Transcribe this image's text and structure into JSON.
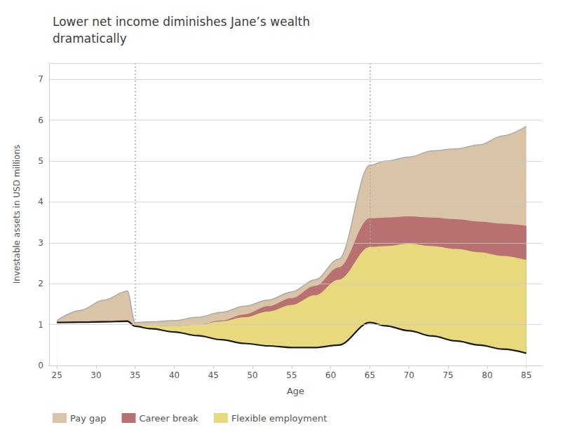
{
  "chart_data": {
    "type": "area",
    "title": "Lower net income diminishes Jane’s wealth\ndramatically",
    "xlabel": "Age",
    "ylabel": "Investable assets in USD millions",
    "x": [
      25,
      28,
      31,
      34,
      35,
      37,
      40,
      43,
      46,
      49,
      52,
      55,
      58,
      61,
      65,
      67,
      70,
      73,
      76,
      79,
      82,
      85
    ],
    "series": [
      {
        "type": "line",
        "color": "#aaaaaa",
        "values": [
          1.1,
          1.35,
          1.6,
          1.82,
          1.05,
          1.07,
          1.1,
          1.18,
          1.3,
          1.45,
          1.6,
          1.8,
          2.1,
          2.6,
          4.9,
          5.0,
          5.1,
          5.25,
          5.3,
          5.4,
          5.62,
          5.85
        ]
      },
      {
        "name": "Pay gap",
        "type": "area",
        "color": "#d9c4a8",
        "values": [
          1.1,
          1.35,
          1.6,
          1.82,
          1.05,
          1.07,
          1.1,
          1.18,
          1.3,
          1.45,
          1.6,
          1.8,
          2.1,
          2.6,
          4.9,
          5.0,
          5.1,
          5.25,
          5.3,
          5.4,
          5.62,
          5.85
        ]
      },
      {
        "name": "Career break",
        "type": "area",
        "color": "#b87070",
        "values": [
          1.05,
          1.07,
          1.09,
          1.11,
          1.0,
          0.98,
          0.96,
          1.0,
          1.1,
          1.25,
          1.45,
          1.65,
          1.95,
          2.4,
          3.6,
          3.62,
          3.65,
          3.62,
          3.58,
          3.52,
          3.47,
          3.42
        ]
      },
      {
        "name": "Flexible employment",
        "type": "area",
        "color": "#e8d87e",
        "values": [
          1.05,
          1.06,
          1.07,
          1.08,
          1.0,
          0.98,
          0.96,
          1.0,
          1.08,
          1.18,
          1.32,
          1.48,
          1.72,
          2.1,
          2.9,
          2.92,
          2.98,
          2.92,
          2.85,
          2.77,
          2.68,
          2.58
        ]
      },
      {
        "type": "line",
        "color": "#1a1a1a",
        "values": [
          1.05,
          1.06,
          1.07,
          1.08,
          0.96,
          0.9,
          0.82,
          0.73,
          0.63,
          0.54,
          0.48,
          0.44,
          0.44,
          0.5,
          1.05,
          0.97,
          0.85,
          0.72,
          0.6,
          0.5,
          0.4,
          0.3
        ]
      }
    ],
    "xlim": [
      24,
      87
    ],
    "ylim": [
      0,
      7.4
    ],
    "xticks": [
      25,
      30,
      35,
      40,
      45,
      50,
      55,
      60,
      65,
      70,
      75,
      80,
      85
    ],
    "yticks": [
      0,
      1,
      2,
      3,
      4,
      5,
      6,
      7
    ],
    "grid": true,
    "legend": "lower left",
    "vlines": {
      "x": [
        35,
        65
      ],
      "color": "#aaaaaa",
      "line_style": "dotted"
    }
  }
}
